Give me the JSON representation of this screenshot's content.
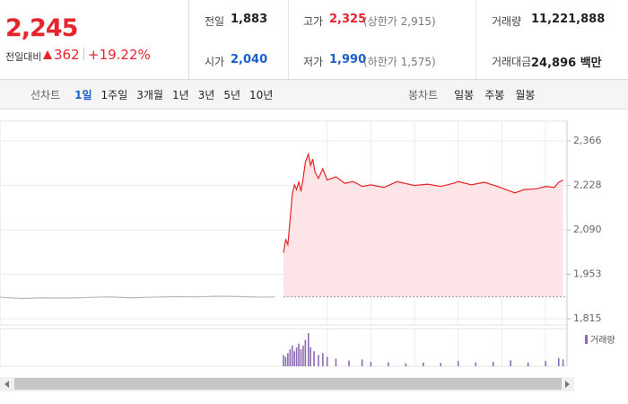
{
  "quote": {
    "price": "2,245",
    "change_label": "전일대비",
    "change": "362",
    "rate": "+19.22%",
    "color": "#e5242b"
  },
  "info": {
    "rows": [
      [
        {
          "label": "전일",
          "value": "1,883",
          "color": "#222"
        },
        {
          "label": "고가",
          "value": "2,325",
          "extra": "(상한가 2,915)",
          "color": "#e5242b"
        },
        {
          "label": "거래량",
          "value": "11,221,888",
          "color": "#222"
        }
      ],
      [
        {
          "label": "시가",
          "value": "2,040",
          "color": "#1a5fcc"
        },
        {
          "label": "저가",
          "value": "1,990",
          "extra": "(하한가 1,575)",
          "color": "#1a5fcc"
        },
        {
          "label": "거래대금",
          "value": "24,896 백만",
          "color": "#222"
        }
      ]
    ]
  },
  "tabs": {
    "line_label": "선차트",
    "periods": [
      "1일",
      "1주일",
      "3개월",
      "1년",
      "3년",
      "5년",
      "10년"
    ],
    "selected": 0,
    "candle_label": "봉차트",
    "candles": [
      "일봉",
      "주봉",
      "월봉"
    ]
  },
  "chart_data": {
    "type": "line",
    "xlim": [
      2.51,
      15.49
    ],
    "xticks": [
      10,
      11,
      12,
      13,
      14,
      15
    ],
    "ylim": [
      1796,
      2427
    ],
    "yticks": [
      {
        "value": 1815,
        "label": "1,815"
      },
      {
        "value": 1953,
        "label": "1,953"
      },
      {
        "value": 2090,
        "label": "2,090"
      },
      {
        "value": 2228,
        "label": "2,228"
      },
      {
        "value": 2366,
        "label": "2,366"
      }
    ],
    "grid": true,
    "baseline": 1883,
    "area_color": "#fde4e6",
    "series": [
      {
        "color": "#b8b8b8",
        "x": [
          2.51,
          3.0,
          3.5,
          4.0,
          4.5,
          5.0,
          5.5,
          6.0,
          6.5,
          7.0,
          7.5,
          8.0,
          8.5,
          8.8
        ],
        "values": [
          1882,
          1878,
          1880,
          1879,
          1881,
          1883,
          1880,
          1882,
          1884,
          1883,
          1885,
          1884,
          1882,
          1883
        ]
      },
      {
        "color": "#e5242b",
        "x": [
          9.0,
          9.05,
          9.1,
          9.15,
          9.2,
          9.25,
          9.3,
          9.35,
          9.4,
          9.45,
          9.5,
          9.57,
          9.62,
          9.67,
          9.72,
          9.8,
          9.9,
          10.0,
          10.2,
          10.4,
          10.6,
          10.8,
          11.0,
          11.3,
          11.6,
          12.0,
          12.3,
          12.6,
          12.9,
          13.0,
          13.3,
          13.6,
          13.9,
          14.1,
          14.3,
          14.5,
          14.8,
          15.0,
          15.2,
          15.3,
          15.4
        ],
        "values": [
          2020,
          2060,
          2045,
          2120,
          2200,
          2230,
          2215,
          2240,
          2210,
          2250,
          2300,
          2325,
          2290,
          2310,
          2270,
          2250,
          2280,
          2245,
          2255,
          2235,
          2240,
          2225,
          2230,
          2222,
          2240,
          2228,
          2232,
          2225,
          2235,
          2240,
          2230,
          2238,
          2225,
          2215,
          2205,
          2215,
          2218,
          2225,
          2222,
          2238,
          2245
        ]
      }
    ],
    "volume": {
      "name": "거래량",
      "color": "#8c6bb1",
      "ylim": [
        0,
        100
      ],
      "x": [
        9.0,
        9.05,
        9.1,
        9.15,
        9.2,
        9.25,
        9.3,
        9.35,
        9.4,
        9.45,
        9.5,
        9.57,
        9.62,
        9.7,
        9.8,
        9.9,
        10.0,
        10.2,
        10.5,
        10.8,
        11.0,
        11.4,
        11.8,
        12.2,
        12.6,
        13.0,
        13.4,
        13.8,
        14.2,
        14.6,
        15.0,
        15.3,
        15.4
      ],
      "values": [
        30,
        25,
        35,
        45,
        55,
        40,
        50,
        60,
        45,
        55,
        70,
        88,
        50,
        40,
        30,
        35,
        25,
        20,
        15,
        18,
        12,
        10,
        8,
        10,
        9,
        14,
        10,
        12,
        16,
        10,
        14,
        22,
        18
      ]
    }
  }
}
